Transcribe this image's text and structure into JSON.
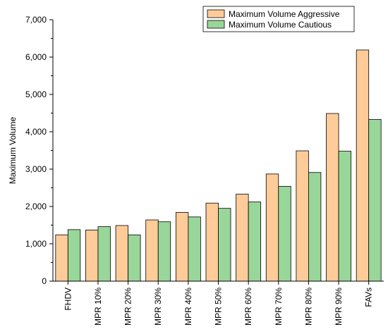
{
  "chart_data": {
    "type": "bar",
    "title": "",
    "xlabel": "",
    "ylabel": "Maximum Volume",
    "ylim": [
      0,
      7000
    ],
    "yticks": [
      0,
      1000,
      2000,
      3000,
      4000,
      5000,
      6000,
      7000
    ],
    "ytick_labels": [
      "0",
      "1,000",
      "2,000",
      "3,000",
      "4,000",
      "5,000",
      "6,000",
      "7,000"
    ],
    "categories": [
      "FHDV",
      "MPR 10%",
      "MPR 20%",
      "MPR 30%",
      "MPR 40%",
      "MPR 50%",
      "MPR 60%",
      "MPR 70%",
      "MPR 80%",
      "MPR 90%",
      "FAVs"
    ],
    "series": [
      {
        "name": "Maximum Volume Aggressive",
        "color": "#FFCC99",
        "values": [
          1240,
          1370,
          1490,
          1640,
          1840,
          2090,
          2330,
          2870,
          3490,
          4490,
          6190
        ]
      },
      {
        "name": "Maximum Volume Cautious",
        "color": "#99D699",
        "values": [
          1380,
          1460,
          1240,
          1590,
          1720,
          1950,
          2120,
          2540,
          2910,
          3480,
          4330
        ]
      }
    ],
    "grid": false,
    "legend_position": "top-right"
  }
}
